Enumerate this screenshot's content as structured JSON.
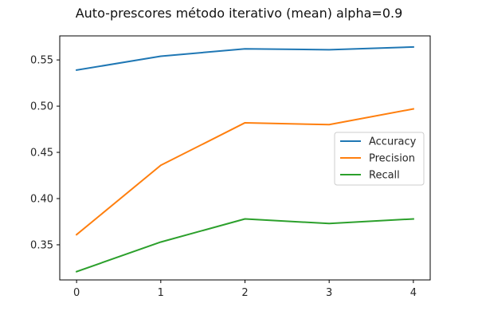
{
  "chart_data": {
    "type": "line",
    "title": "Auto-prescores método iterativo (mean) alpha=0.9",
    "xlabel": "",
    "ylabel": "",
    "x": [
      0,
      1,
      2,
      3,
      4
    ],
    "xticks": [
      "0",
      "1",
      "2",
      "3",
      "4"
    ],
    "yticks": [
      "0.35",
      "0.40",
      "0.45",
      "0.50",
      "0.55"
    ],
    "xlim": [
      -0.2,
      4.2
    ],
    "ylim": [
      0.312,
      0.576
    ],
    "grid": false,
    "legend_position": "center-right",
    "series": [
      {
        "name": "Accuracy",
        "color": "#1f77b4",
        "values": [
          0.539,
          0.554,
          0.562,
          0.561,
          0.564
        ]
      },
      {
        "name": "Precision",
        "color": "#ff7f0e",
        "values": [
          0.361,
          0.436,
          0.482,
          0.48,
          0.497
        ]
      },
      {
        "name": "Recall",
        "color": "#2ca02c",
        "values": [
          0.321,
          0.353,
          0.378,
          0.373,
          0.378
        ]
      }
    ]
  }
}
